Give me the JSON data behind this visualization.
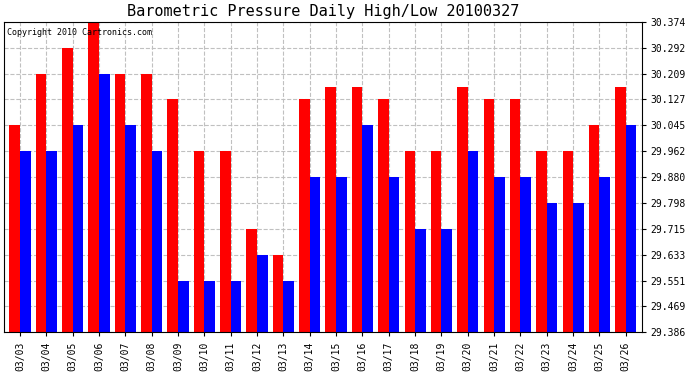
{
  "title": "Barometric Pressure Daily High/Low 20100327",
  "copyright": "Copyright 2010 Cartronics.com",
  "dates": [
    "03/03",
    "03/04",
    "03/05",
    "03/06",
    "03/07",
    "03/08",
    "03/09",
    "03/10",
    "03/11",
    "03/12",
    "03/13",
    "03/14",
    "03/15",
    "03/16",
    "03/17",
    "03/18",
    "03/19",
    "03/20",
    "03/21",
    "03/22",
    "03/23",
    "03/24",
    "03/25",
    "03/26"
  ],
  "highs": [
    30.045,
    30.209,
    30.292,
    30.374,
    30.209,
    30.209,
    30.127,
    29.962,
    29.962,
    29.715,
    29.633,
    30.127,
    30.168,
    30.168,
    30.127,
    29.962,
    29.962,
    30.168,
    30.127,
    30.127,
    29.962,
    29.962,
    30.045,
    30.168
  ],
  "lows": [
    29.962,
    29.962,
    30.045,
    30.209,
    30.045,
    29.962,
    29.551,
    29.551,
    29.551,
    29.633,
    29.551,
    29.88,
    29.88,
    30.045,
    29.88,
    29.715,
    29.715,
    29.962,
    29.88,
    29.88,
    29.798,
    29.798,
    29.88,
    30.045
  ],
  "high_color": "#ff0000",
  "low_color": "#0000ff",
  "background_color": "#ffffff",
  "plot_bg_color": "#ffffff",
  "grid_color": "#c0c0c0",
  "ylim_min": 29.386,
  "ylim_max": 30.374,
  "yticks": [
    30.374,
    30.292,
    30.209,
    30.127,
    30.045,
    29.962,
    29.88,
    29.798,
    29.715,
    29.633,
    29.551,
    29.469,
    29.386
  ],
  "title_fontsize": 11,
  "bar_width": 0.4
}
